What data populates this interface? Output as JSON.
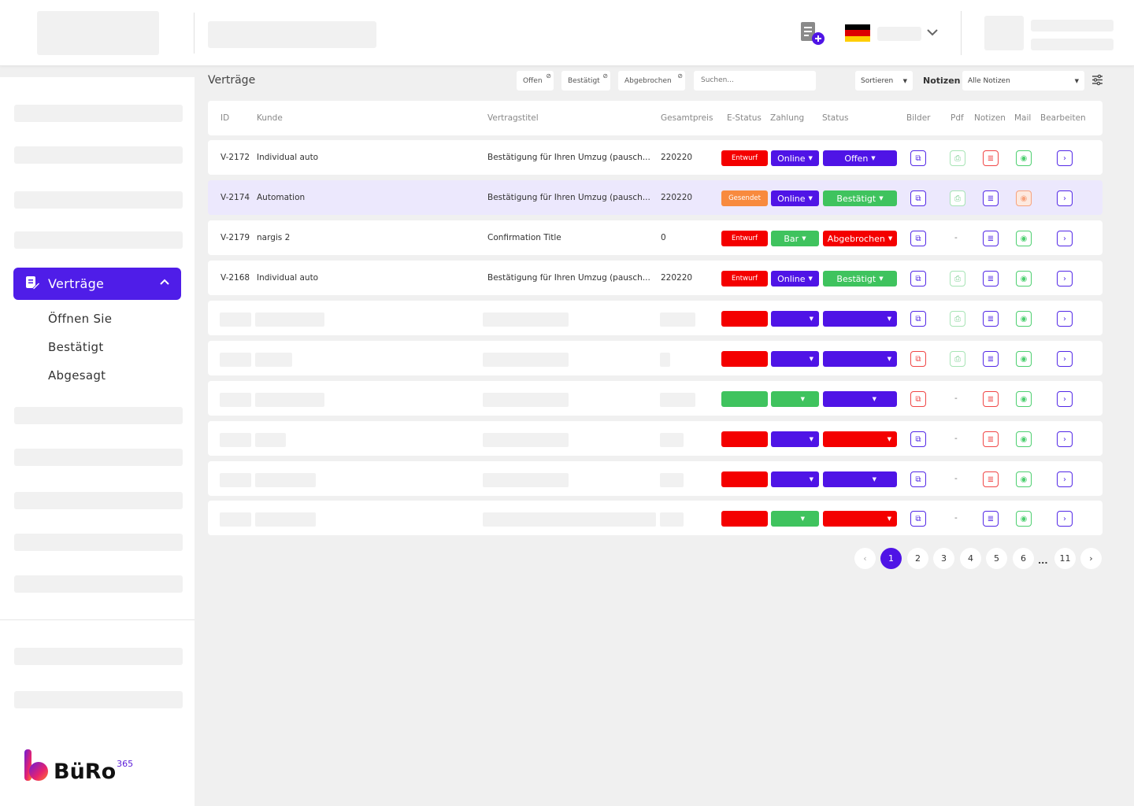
{
  "nav": {
    "active_label": "Verträge",
    "sub": [
      "Öffnen Sie",
      "Bestätigt",
      "Abgesagt"
    ]
  },
  "logo": {
    "text": "BüRo",
    "sup": "365"
  },
  "page": {
    "title": "Verträge"
  },
  "filters": {
    "chips": [
      "Offen",
      "Bestätigt",
      "Abgebrochen"
    ],
    "search_placeholder": "Suchen...",
    "sort_label": "Sortieren",
    "notes_label": "Notizen",
    "notes_select": "Alle Notizen"
  },
  "table": {
    "headers": [
      "ID",
      "Kunde",
      "Vertragstitel",
      "Gesamtpreis",
      "E-Status",
      "Zahlung",
      "Status",
      "Bilder",
      "Pdf",
      "Notizen",
      "Mail",
      "Bearbeiten"
    ],
    "rows": [
      {
        "id": "V-2172",
        "kunde": "Individual auto",
        "titel": "Bestätigung für Ihren Umzug (pausch...",
        "preis": "220220",
        "estatus": "Entwurf",
        "zahlung": "Online",
        "status": "Offen"
      },
      {
        "id": "V-2174",
        "kunde": "Automation",
        "titel": "Bestätigung für Ihren Umzug (pausch...",
        "preis": "220220",
        "estatus": "Gesendet",
        "zahlung": "Online",
        "status": "Bestätigt"
      },
      {
        "id": "V-2179",
        "kunde": "nargis 2",
        "titel": "Confirmation Title",
        "preis": "0",
        "estatus": "Entwurf",
        "zahlung": "Bar",
        "status": "Abgebrochen"
      },
      {
        "id": "V-2168",
        "kunde": "Individual auto",
        "titel": "Bestätigung für Ihren Umzug (pausch...",
        "preis": "220220",
        "estatus": "Entwurf",
        "zahlung": "Online",
        "status": "Bestätigt"
      }
    ]
  },
  "pagination": {
    "pages": [
      "1",
      "2",
      "3",
      "4",
      "5",
      "6"
    ],
    "ellipsis": "...",
    "last": "11",
    "prev": "‹",
    "next": "›"
  },
  "colors": {
    "accent": "#4f14e6",
    "red": "#f40000",
    "green": "#3fc35e",
    "orange": "#f88a3e"
  }
}
